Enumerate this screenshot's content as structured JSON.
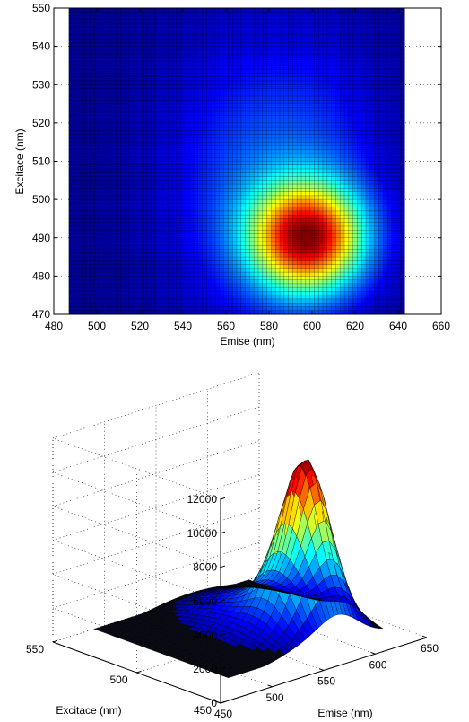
{
  "chart_data": [
    {
      "type": "heatmap",
      "xlabel": "Emise (nm)",
      "ylabel": "Excitace (nm)",
      "xlim": [
        480,
        660
      ],
      "ylim": [
        470,
        550
      ],
      "xticks": [
        480,
        500,
        520,
        540,
        560,
        580,
        600,
        620,
        640,
        660
      ],
      "yticks": [
        470,
        480,
        490,
        500,
        510,
        520,
        530,
        540,
        550
      ],
      "data_extent": {
        "x": [
          487,
          643
        ],
        "y": [
          470,
          550
        ]
      },
      "peak": {
        "emise": 598,
        "excitace": 490,
        "value": 10000
      },
      "colormap": "jet",
      "grid": true,
      "mesh_lines": true
    },
    {
      "type": "surface3d",
      "xlabel": "Emise (nm)",
      "ylabel": "Excitace (nm)",
      "zlabel": "",
      "xlim": [
        450,
        650
      ],
      "ylim": [
        450,
        550
      ],
      "zlim": [
        0,
        12000
      ],
      "xticks": [
        450,
        500,
        550,
        600,
        650
      ],
      "yticks": [
        450,
        500,
        550
      ],
      "zticks": [
        0,
        2000,
        4000,
        6000,
        8000,
        10000,
        12000
      ],
      "peak": {
        "emise": 598,
        "excitace": 490,
        "value": 10000
      },
      "colormap": "jet",
      "grid": true
    }
  ]
}
